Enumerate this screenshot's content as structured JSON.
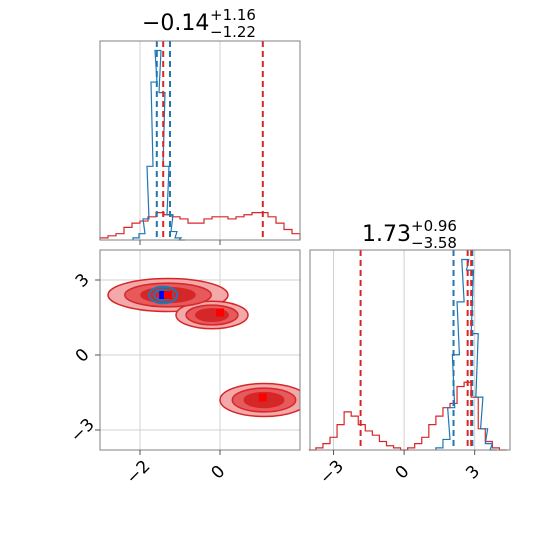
{
  "colors": {
    "red": "#d62728",
    "red_fill_light": "#f3a8aa",
    "red_fill_mid": "#e8595c",
    "red_fill_dark": "#d62728",
    "blue": "#1f77b4",
    "marker_blue": "#0000ff",
    "marker_red": "#ff0000",
    "grid": "#d0d0d0",
    "frame": "#808080"
  },
  "chart_data": [
    {
      "type": "line",
      "panel": "top-left",
      "subtype": "histogram",
      "title": {
        "value": "−0.14",
        "plus": "+1.16",
        "minus": "−1.22"
      },
      "xlim": [
        -3.0,
        2.0
      ],
      "xticks": [
        -2,
        0
      ],
      "series": [
        {
          "color": "red",
          "x": [
            -2.9,
            -2.7,
            -2.5,
            -2.3,
            -2.1,
            -1.9,
            -1.7,
            -1.5,
            -1.3,
            -1.1,
            -0.9,
            -0.7,
            -0.5,
            -0.3,
            -0.1,
            0.1,
            0.3,
            0.5,
            0.7,
            0.9,
            1.1,
            1.3,
            1.5,
            1.7,
            1.9
          ],
          "y": [
            0.01,
            0.02,
            0.03,
            0.06,
            0.08,
            0.09,
            0.11,
            0.13,
            0.12,
            0.11,
            0.1,
            0.08,
            0.08,
            0.1,
            0.11,
            0.11,
            0.1,
            0.11,
            0.12,
            0.13,
            0.13,
            0.11,
            0.08,
            0.05,
            0.03
          ]
        },
        {
          "color": "blue",
          "x": [
            -2.1,
            -1.95,
            -1.85,
            -1.75,
            -1.65,
            -1.55,
            -1.45,
            -1.35,
            -1.25,
            -1.15,
            -1.05,
            -0.95
          ],
          "y": [
            0.01,
            0.03,
            0.1,
            0.35,
            0.75,
            0.9,
            0.7,
            0.35,
            0.12,
            0.04,
            0.01,
            0.0
          ]
        }
      ],
      "vlines": [
        {
          "x": -1.58,
          "color": "blue"
        },
        {
          "x": -1.25,
          "color": "blue"
        },
        {
          "x": -1.42,
          "color": "red"
        },
        {
          "x": 1.07,
          "color": "red"
        }
      ]
    },
    {
      "type": "line",
      "panel": "bottom-right",
      "subtype": "histogram",
      "title": {
        "value": "1.73",
        "plus": "+0.96",
        "minus": "−3.58"
      },
      "xlim": [
        -4.0,
        4.5
      ],
      "xticks": [
        -3,
        0,
        3
      ],
      "series": [
        {
          "color": "red",
          "x": [
            -3.9,
            -3.6,
            -3.3,
            -3.0,
            -2.7,
            -2.4,
            -2.1,
            -1.8,
            -1.5,
            -1.2,
            -0.9,
            -0.6,
            -0.3,
            0.0,
            0.3,
            0.6,
            0.9,
            1.2,
            1.5,
            1.8,
            2.1,
            2.4,
            2.7,
            3.0,
            3.3,
            3.6,
            3.9,
            4.2
          ],
          "y": [
            0.0,
            0.01,
            0.03,
            0.06,
            0.12,
            0.18,
            0.16,
            0.12,
            0.09,
            0.07,
            0.04,
            0.02,
            0.01,
            0.0,
            0.01,
            0.03,
            0.06,
            0.12,
            0.16,
            0.2,
            0.22,
            0.3,
            0.32,
            0.25,
            0.1,
            0.04,
            0.01,
            0.0
          ]
        },
        {
          "color": "blue",
          "x": [
            1.5,
            1.8,
            2.0,
            2.2,
            2.4,
            2.6,
            2.8,
            3.0,
            3.2,
            3.4,
            3.6,
            3.8
          ],
          "y": [
            0.01,
            0.05,
            0.2,
            0.45,
            0.7,
            0.9,
            0.85,
            0.55,
            0.25,
            0.1,
            0.03,
            0.0
          ]
        }
      ],
      "vlines": [
        {
          "x": 2.1,
          "color": "blue"
        },
        {
          "x": 2.9,
          "color": "blue"
        },
        {
          "x": -1.85,
          "color": "red"
        },
        {
          "x": 2.7,
          "color": "red"
        },
        {
          "x": 2.85,
          "color": "red"
        }
      ]
    },
    {
      "type": "scatter",
      "panel": "bottom-left",
      "subtype": "2d-contour",
      "xlim": [
        -3.0,
        2.0
      ],
      "ylim": [
        -3.8,
        4.2
      ],
      "xticks": [
        -2,
        0
      ],
      "yticks": [
        3,
        0,
        -3
      ],
      "red_modes": [
        {
          "cx": -1.3,
          "cy": 2.4,
          "rx": 1.5,
          "ry": 1.2
        },
        {
          "cx": -0.2,
          "cy": 1.6,
          "rx": 0.9,
          "ry": 1.0
        },
        {
          "cx": 1.1,
          "cy": -1.8,
          "rx": 1.1,
          "ry": 1.2
        }
      ],
      "blue_contour": {
        "cx": -1.42,
        "cy": 2.4,
        "rx": 0.35,
        "ry": 0.6
      },
      "markers": [
        {
          "x": -1.42,
          "y": 2.4,
          "color": "marker_blue"
        },
        {
          "x": -1.3,
          "y": 2.4,
          "color": "marker_red"
        },
        {
          "x": 0.0,
          "y": 1.7,
          "color": "marker_red"
        },
        {
          "x": 1.07,
          "y": -1.7,
          "color": "marker_red"
        }
      ]
    }
  ]
}
